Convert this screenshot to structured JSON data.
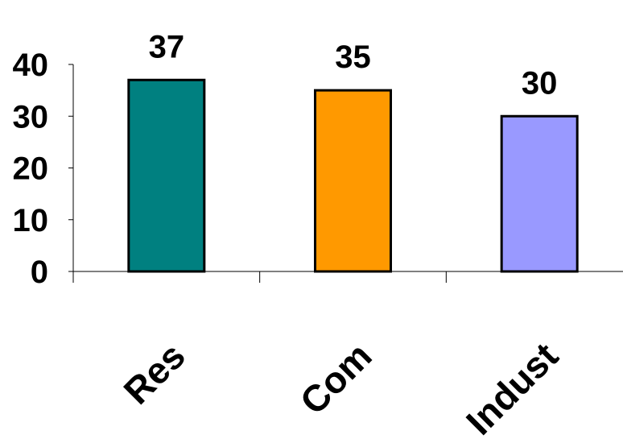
{
  "chart_data": {
    "type": "bar",
    "title": "",
    "xlabel": "",
    "ylabel": "",
    "categories": [
      "Res",
      "Com",
      "Indust"
    ],
    "values": [
      37,
      35,
      30
    ],
    "data_labels": [
      "37",
      "35",
      "30"
    ],
    "ylim": [
      0,
      40
    ],
    "yticks": [
      "0",
      "10",
      "20",
      "30",
      "40"
    ],
    "colors": [
      "#008080",
      "#FF9900",
      "#9999FF"
    ],
    "grid": false,
    "legend": "none"
  }
}
